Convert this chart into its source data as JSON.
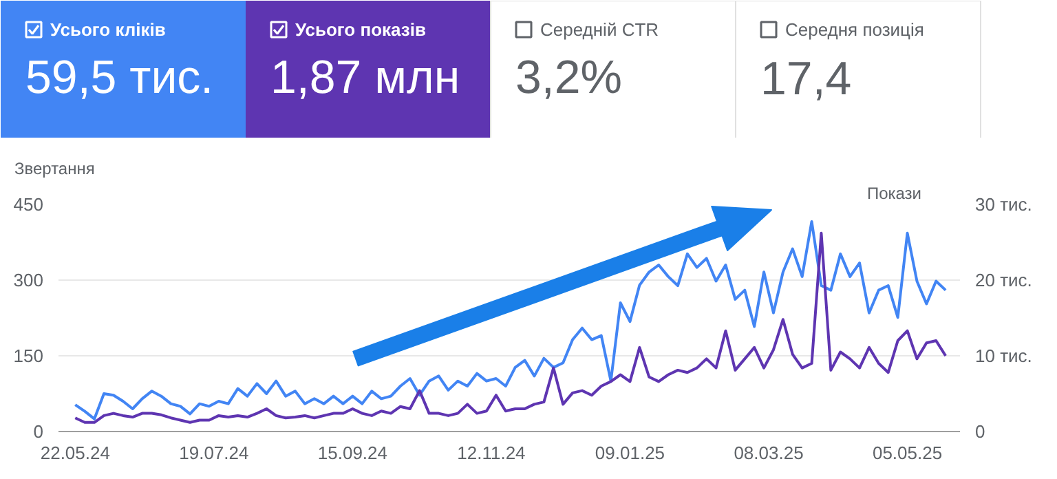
{
  "chart_data": [
    {
      "type": "other",
      "categories": [
        "Усього кліків",
        "Усього показів",
        "Середній CTR",
        "Середня позиція"
      ],
      "value_labels": [
        "59,5 тис.",
        "1,87 млн",
        "3,2%",
        "17,4"
      ],
      "colors": [
        "#4285f4",
        "#5e35b1",
        null,
        null
      ]
    },
    {
      "type": "line",
      "ylabel": "Звертання",
      "y2label": "Покази",
      "x": [
        "2024-05-22",
        "2024-05-26",
        "2024-05-30",
        "2024-06-03",
        "2024-06-07",
        "2024-06-11",
        "2024-06-15",
        "2024-06-19",
        "2024-06-23",
        "2024-06-27",
        "2024-07-01",
        "2024-07-05",
        "2024-07-09",
        "2024-07-13",
        "2024-07-17",
        "2024-07-21",
        "2024-07-25",
        "2024-07-29",
        "2024-08-02",
        "2024-08-06",
        "2024-08-10",
        "2024-08-14",
        "2024-08-18",
        "2024-08-22",
        "2024-08-26",
        "2024-08-30",
        "2024-09-03",
        "2024-09-07",
        "2024-09-11",
        "2024-09-15",
        "2024-09-19",
        "2024-09-23",
        "2024-09-27",
        "2024-10-01",
        "2024-10-05",
        "2024-10-09",
        "2024-10-13",
        "2024-10-17",
        "2024-10-21",
        "2024-10-25",
        "2024-10-29",
        "2024-11-02",
        "2024-11-06",
        "2024-11-10",
        "2024-11-14",
        "2024-11-18",
        "2024-11-22",
        "2024-11-26",
        "2024-11-30",
        "2024-12-04",
        "2024-12-08",
        "2024-12-12",
        "2024-12-16",
        "2024-12-20",
        "2024-12-24",
        "2024-12-28",
        "2025-01-01",
        "2025-01-05",
        "2025-01-09",
        "2025-01-13",
        "2025-01-17",
        "2025-01-21",
        "2025-01-25",
        "2025-01-29",
        "2025-02-02",
        "2025-02-06",
        "2025-02-10",
        "2025-02-14",
        "2025-02-18",
        "2025-02-22",
        "2025-02-26",
        "2025-03-02",
        "2025-03-06",
        "2025-03-10",
        "2025-03-14",
        "2025-03-18",
        "2025-03-22",
        "2025-03-26",
        "2025-03-30",
        "2025-04-03",
        "2025-04-07",
        "2025-04-11",
        "2025-04-15",
        "2025-04-19",
        "2025-04-23",
        "2025-04-27",
        "2025-05-01",
        "2025-05-05",
        "2025-05-09",
        "2025-05-13",
        "2025-05-17",
        "2025-05-21"
      ],
      "series": [
        {
          "color": "#4285f4",
          "values": [
            53,
            40,
            25,
            75,
            72,
            60,
            45,
            65,
            80,
            70,
            55,
            50,
            35,
            55,
            50,
            60,
            55,
            85,
            70,
            95,
            75,
            100,
            70,
            80,
            55,
            65,
            55,
            70,
            55,
            70,
            55,
            80,
            65,
            70,
            90,
            105,
            72,
            100,
            110,
            82,
            100,
            90,
            115,
            100,
            105,
            90,
            127,
            141,
            110,
            145,
            127,
            136,
            182,
            205,
            182,
            190,
            100,
            255,
            218,
            290,
            316,
            330,
            307,
            289,
            352,
            325,
            343,
            298,
            330,
            262,
            280,
            208,
            316,
            235,
            316,
            362,
            307,
            416,
            289,
            280,
            352,
            307,
            334,
            235,
            280,
            289,
            226,
            393,
            298,
            253,
            298,
            280
          ]
        },
        {
          "color": "#5e35b1",
          "axis": "y2",
          "values": [
            1.8,
            1.2,
            1.2,
            2.1,
            2.4,
            2.1,
            1.9,
            2.4,
            2.4,
            2.2,
            1.8,
            1.5,
            1.2,
            1.5,
            1.5,
            2.1,
            1.9,
            2.1,
            1.9,
            2.4,
            3.0,
            2.1,
            1.8,
            1.9,
            2.1,
            1.8,
            2.1,
            2.4,
            2.4,
            3.0,
            2.4,
            2.1,
            2.7,
            2.4,
            3.3,
            3.0,
            5.4,
            2.4,
            2.4,
            2.1,
            2.4,
            3.6,
            2.4,
            2.7,
            4.8,
            2.7,
            3.0,
            3.0,
            3.6,
            3.9,
            8.4,
            3.6,
            5.1,
            5.4,
            4.8,
            6.0,
            6.6,
            7.5,
            6.6,
            11.1,
            7.2,
            6.6,
            7.5,
            8.1,
            7.8,
            8.4,
            9.6,
            8.4,
            13.3,
            8.1,
            9.6,
            11.1,
            8.4,
            10.8,
            14.8,
            10.2,
            8.4,
            9.0,
            26.2,
            8.1,
            10.5,
            9.6,
            8.4,
            11.1,
            9.0,
            7.8,
            12.0,
            13.3,
            9.6,
            11.7,
            12.0,
            10.0
          ]
        }
      ],
      "xlim": [
        "2024-05-15",
        "2025-05-27"
      ],
      "xticks": [
        {
          "value": "2024-05-22",
          "label": "22.05.24"
        },
        {
          "value": "2024-07-19",
          "label": "19.07.24"
        },
        {
          "value": "2024-09-15",
          "label": "15.09.24"
        },
        {
          "value": "2024-11-12",
          "label": "12.11.24"
        },
        {
          "value": "2025-01-09",
          "label": "09.01.25"
        },
        {
          "value": "2025-03-08",
          "label": "08.03.25"
        },
        {
          "value": "2025-05-05",
          "label": "05.05.25"
        }
      ],
      "ylim": [
        0,
        450
      ],
      "yticks": [
        0,
        150,
        300,
        450
      ],
      "y2lim": [
        0,
        30
      ],
      "y2ticks": [
        0,
        {
          "value": 10,
          "label": "10 тис."
        },
        {
          "value": 20,
          "label": "20 тис."
        },
        {
          "value": 30,
          "label": "30 тис."
        }
      ],
      "grid": "y",
      "marker": "none",
      "line_style": "solid"
    }
  ]
}
